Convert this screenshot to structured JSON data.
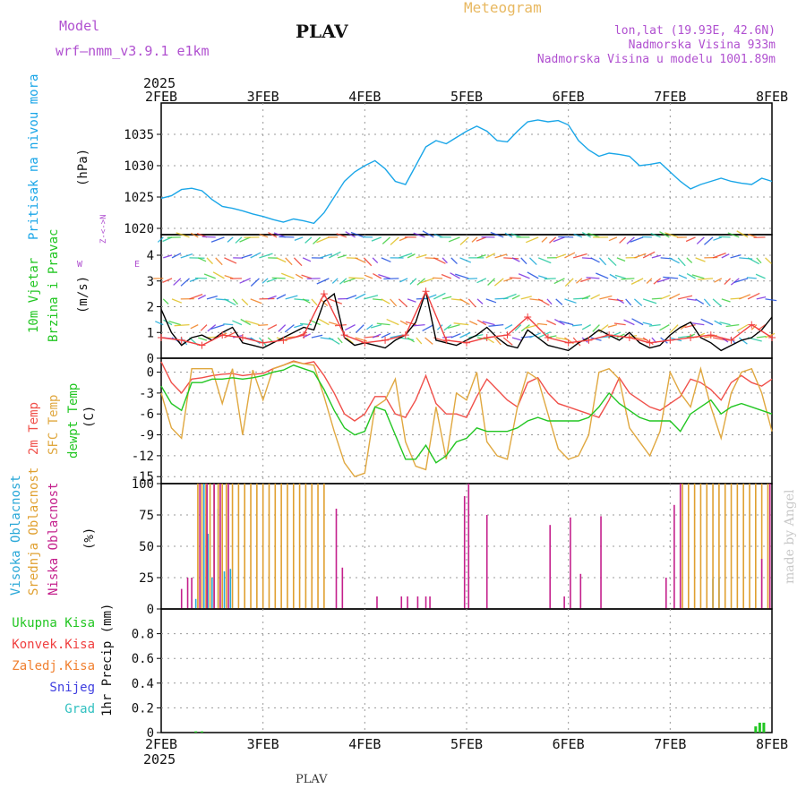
{
  "header": {
    "model_label": "Model",
    "model_name": "wrf—nmm_v3.9.1  e1km",
    "station": "PLAV",
    "meteogram": "Meteogram",
    "lonlat": "lon,lat (19.93E, 42.6N)",
    "elevation": "Nadmorska Visina 933m",
    "model_elevation": "Nadmorska Visina u modelu 1001.89m",
    "footer_station": "PLAV",
    "credit": "made by Angel"
  },
  "colors": {
    "pressure": "#1aa6e8",
    "temp2m": "#f0504a",
    "sfc_temp": "#e0a840",
    "dewpt": "#22c622",
    "high_cloud": "#2aa8d8",
    "mid_cloud": "#e0a030",
    "low_cloud": "#c4208c",
    "wind_speed": "#000000",
    "gust": "#f04040",
    "title_purple": "#b050d0",
    "meteogram_orange": "#e8b860"
  },
  "time_axis": {
    "year": "2025",
    "ticks": [
      "2FEB",
      "3FEB",
      "4FEB",
      "5FEB",
      "6FEB",
      "7FEB",
      "8FEB"
    ],
    "range_days": [
      0,
      6
    ]
  },
  "chart_data": [
    {
      "type": "line",
      "panel": "pressure",
      "ylabel": "Pritisak na nivou mora",
      "unit": "(hPa)",
      "ylim": [
        1019,
        1040
      ],
      "yticks": [
        1020,
        1025,
        1030,
        1035
      ],
      "grid": true,
      "series": [
        {
          "color": "#1aa6e8",
          "x": [
            0,
            0.1,
            0.2,
            0.3,
            0.4,
            0.5,
            0.6,
            0.7,
            0.8,
            0.9,
            1.0,
            1.1,
            1.2,
            1.3,
            1.4,
            1.5,
            1.6,
            1.7,
            1.8,
            1.9,
            2.0,
            2.1,
            2.2,
            2.3,
            2.4,
            2.5,
            2.6,
            2.7,
            2.8,
            2.9,
            3.0,
            3.1,
            3.2,
            3.3,
            3.4,
            3.5,
            3.6,
            3.7,
            3.8,
            3.9,
            4.0,
            4.1,
            4.2,
            4.3,
            4.4,
            4.5,
            4.6,
            4.7,
            4.8,
            4.9,
            5.0,
            5.1,
            5.2,
            5.3,
            5.4,
            5.5,
            5.6,
            5.7,
            5.8,
            5.9,
            6.0
          ],
          "y": [
            1024.8,
            1025.2,
            1026.2,
            1026.4,
            1026.0,
            1024.6,
            1023.5,
            1023.2,
            1022.8,
            1022.3,
            1021.9,
            1021.4,
            1021.0,
            1021.5,
            1021.2,
            1020.8,
            1022.5,
            1025.0,
            1027.5,
            1029.0,
            1030.0,
            1030.8,
            1029.5,
            1027.5,
            1027.0,
            1030.0,
            1033.0,
            1034.0,
            1033.5,
            1034.5,
            1035.5,
            1036.3,
            1035.5,
            1034.0,
            1033.8,
            1035.5,
            1037.0,
            1037.3,
            1037.0,
            1037.2,
            1036.5,
            1034.0,
            1032.5,
            1031.5,
            1032.0,
            1031.8,
            1031.5,
            1030.0,
            1030.2,
            1030.5,
            1029.0,
            1027.5,
            1026.3,
            1027.0,
            1027.5,
            1028.0,
            1027.5,
            1027.2,
            1027.0,
            1028.0,
            1027.5
          ]
        }
      ]
    },
    {
      "type": "line",
      "panel": "wind",
      "ylabel": "10m Vjetar Brzina i Pravac",
      "unit": "(m/s)",
      "ylim": [
        0,
        4.8
      ],
      "yticks": [
        0,
        1,
        2,
        3,
        4
      ],
      "compass": "N  W <-|-> E  S",
      "grid": true,
      "series": [
        {
          "name": "speed",
          "color": "#000000",
          "x": [
            0,
            0.1,
            0.2,
            0.3,
            0.4,
            0.5,
            0.6,
            0.7,
            0.8,
            0.9,
            1.0,
            1.1,
            1.2,
            1.3,
            1.4,
            1.5,
            1.6,
            1.7,
            1.8,
            1.9,
            2.0,
            2.1,
            2.2,
            2.3,
            2.4,
            2.5,
            2.6,
            2.7,
            2.8,
            2.9,
            3.0,
            3.1,
            3.2,
            3.3,
            3.4,
            3.5,
            3.6,
            3.7,
            3.8,
            3.9,
            4.0,
            4.1,
            4.2,
            4.3,
            4.4,
            4.5,
            4.6,
            4.7,
            4.8,
            4.9,
            5.0,
            5.1,
            5.2,
            5.3,
            5.4,
            5.5,
            5.6,
            5.7,
            5.8,
            5.9,
            6.0
          ],
          "y": [
            1.9,
            1.0,
            0.5,
            0.8,
            0.9,
            0.7,
            1.0,
            1.2,
            0.6,
            0.5,
            0.4,
            0.6,
            0.8,
            1.0,
            1.2,
            1.1,
            2.2,
            2.5,
            0.8,
            0.5,
            0.6,
            0.5,
            0.4,
            0.7,
            0.9,
            1.4,
            2.6,
            0.7,
            0.6,
            0.5,
            0.7,
            0.9,
            1.2,
            0.8,
            0.5,
            0.4,
            1.1,
            0.8,
            0.5,
            0.4,
            0.3,
            0.6,
            0.8,
            1.1,
            0.9,
            0.7,
            1.0,
            0.6,
            0.4,
            0.5,
            0.9,
            1.2,
            1.4,
            0.8,
            0.6,
            0.3,
            0.5,
            0.7,
            0.8,
            1.1,
            1.6
          ]
        },
        {
          "name": "gust",
          "color": "#f04040",
          "x": [
            0,
            0.2,
            0.4,
            0.6,
            0.8,
            1.0,
            1.2,
            1.4,
            1.6,
            1.8,
            2.0,
            2.2,
            2.4,
            2.6,
            2.8,
            3.0,
            3.2,
            3.4,
            3.6,
            3.8,
            4.0,
            4.2,
            4.4,
            4.6,
            4.8,
            5.0,
            5.2,
            5.4,
            5.6,
            5.8,
            6.0
          ],
          "y": [
            0.8,
            0.7,
            0.5,
            0.9,
            0.8,
            0.6,
            0.7,
            0.9,
            2.5,
            0.9,
            0.6,
            0.7,
            0.9,
            2.6,
            0.7,
            0.6,
            0.8,
            0.9,
            1.6,
            0.8,
            0.6,
            0.7,
            0.9,
            0.8,
            0.6,
            0.7,
            0.8,
            0.9,
            0.7,
            1.3,
            0.8
          ]
        }
      ]
    },
    {
      "type": "line",
      "panel": "temperature",
      "ylabel": "2m Temp / SFC Temp / dewpt Temp",
      "unit": "(C)",
      "ylim": [
        -16,
        2
      ],
      "yticks": [
        0,
        -3,
        -6,
        -9,
        -12,
        -15
      ],
      "grid": true,
      "series": [
        {
          "name": "2m Temp",
          "color": "#f0504a",
          "x": [
            0,
            0.1,
            0.2,
            0.3,
            0.4,
            0.5,
            0.6,
            0.7,
            0.8,
            0.9,
            1.0,
            1.1,
            1.2,
            1.3,
            1.4,
            1.5,
            1.6,
            1.7,
            1.8,
            1.9,
            2.0,
            2.1,
            2.2,
            2.3,
            2.4,
            2.5,
            2.6,
            2.7,
            2.8,
            2.9,
            3.0,
            3.1,
            3.2,
            3.3,
            3.4,
            3.5,
            3.6,
            3.7,
            3.8,
            3.9,
            4.0,
            4.1,
            4.2,
            4.3,
            4.4,
            4.5,
            4.6,
            4.7,
            4.8,
            4.9,
            5.0,
            5.1,
            5.2,
            5.3,
            5.4,
            5.5,
            5.6,
            5.7,
            5.8,
            5.9,
            6.0
          ],
          "y": [
            1.5,
            -1.5,
            -3.0,
            -1.0,
            -0.8,
            -0.5,
            -0.3,
            -0.2,
            -0.5,
            -0.3,
            -0.2,
            0.5,
            1.0,
            1.6,
            1.2,
            1.5,
            -0.5,
            -3.0,
            -6.0,
            -7.0,
            -6.0,
            -3.5,
            -3.5,
            -6.0,
            -6.5,
            -4.0,
            -0.5,
            -4.5,
            -6.0,
            -6.0,
            -6.5,
            -3.5,
            -1.0,
            -2.5,
            -4.0,
            -5.0,
            -1.5,
            -0.8,
            -3.0,
            -4.5,
            -5.0,
            -5.5,
            -6.0,
            -6.5,
            -4.0,
            -0.8,
            -3.0,
            -4.0,
            -5.0,
            -5.5,
            -4.5,
            -3.5,
            -1.0,
            -1.5,
            -2.5,
            -4.0,
            -1.5,
            -0.5,
            -1.5,
            -2.0,
            -1.0
          ]
        },
        {
          "name": "SFC Temp",
          "color": "#e0a840",
          "x": [
            0,
            0.1,
            0.2,
            0.3,
            0.4,
            0.5,
            0.6,
            0.7,
            0.8,
            0.9,
            1.0,
            1.1,
            1.2,
            1.3,
            1.4,
            1.5,
            1.6,
            1.7,
            1.8,
            1.9,
            2.0,
            2.1,
            2.2,
            2.3,
            2.4,
            2.5,
            2.6,
            2.7,
            2.8,
            2.9,
            3.0,
            3.1,
            3.2,
            3.3,
            3.4,
            3.5,
            3.6,
            3.7,
            3.8,
            3.9,
            4.0,
            4.1,
            4.2,
            4.3,
            4.4,
            4.5,
            4.6,
            4.7,
            4.8,
            4.9,
            5.0,
            5.1,
            5.2,
            5.3,
            5.4,
            5.5,
            5.6,
            5.7,
            5.8,
            5.9,
            6.0
          ],
          "y": [
            -3.0,
            -8.0,
            -9.5,
            0.5,
            0.5,
            0.5,
            -4.5,
            0.5,
            -9.0,
            0.3,
            -4.0,
            0.5,
            1.0,
            1.5,
            1.2,
            1.0,
            -3.5,
            -8.5,
            -13.0,
            -15.0,
            -14.5,
            -5.0,
            -4.0,
            -1.0,
            -10.0,
            -13.5,
            -14.0,
            -5.0,
            -12.5,
            -3.0,
            -4.0,
            0.0,
            -10.0,
            -12.0,
            -12.5,
            -5.0,
            0.0,
            -1.0,
            -6.0,
            -11.0,
            -12.5,
            -12.0,
            -9.0,
            0.0,
            0.5,
            -1.0,
            -8.0,
            -10.0,
            -12.0,
            -8.5,
            0.0,
            -3.0,
            -5.0,
            0.5,
            -5.0,
            -9.5,
            -3.0,
            0.0,
            0.5,
            -3.0,
            -8.5
          ]
        },
        {
          "name": "dewpt Temp",
          "color": "#22c622",
          "x": [
            0,
            0.1,
            0.2,
            0.3,
            0.4,
            0.5,
            0.6,
            0.7,
            0.8,
            0.9,
            1.0,
            1.1,
            1.2,
            1.3,
            1.4,
            1.5,
            1.6,
            1.7,
            1.8,
            1.9,
            2.0,
            2.1,
            2.2,
            2.3,
            2.4,
            2.5,
            2.6,
            2.7,
            2.8,
            2.9,
            3.0,
            3.1,
            3.2,
            3.3,
            3.4,
            3.5,
            3.6,
            3.7,
            3.8,
            3.9,
            4.0,
            4.1,
            4.2,
            4.3,
            4.4,
            4.5,
            4.6,
            4.7,
            4.8,
            4.9,
            5.0,
            5.1,
            5.2,
            5.3,
            5.4,
            5.5,
            5.6,
            5.7,
            5.8,
            5.9,
            6.0
          ],
          "y": [
            -2.0,
            -4.5,
            -5.5,
            -1.5,
            -1.5,
            -1.0,
            -1.0,
            -0.8,
            -1.0,
            -0.8,
            -0.5,
            0.0,
            0.3,
            1.0,
            0.5,
            0.0,
            -2.5,
            -5.5,
            -8.0,
            -9.0,
            -8.5,
            -5.0,
            -5.5,
            -9.0,
            -12.5,
            -12.5,
            -10.5,
            -13.0,
            -12.0,
            -10.0,
            -9.5,
            -8.0,
            -8.5,
            -8.5,
            -8.5,
            -8.0,
            -7.0,
            -6.5,
            -7.0,
            -7.0,
            -7.0,
            -7.0,
            -6.5,
            -5.0,
            -3.0,
            -4.5,
            -5.5,
            -6.5,
            -7.0,
            -7.0,
            -7.0,
            -8.5,
            -6.0,
            -5.0,
            -4.0,
            -6.0,
            -5.0,
            -4.5,
            -5.0,
            -5.5,
            -6.0
          ]
        }
      ]
    },
    {
      "type": "bar",
      "panel": "cloud",
      "ylabel": "Visoka Oblacnost / Srednja Oblacnost / Niska Oblacnost",
      "unit": "(%)",
      "ylim": [
        0,
        100
      ],
      "yticks": [
        0,
        25,
        50,
        75,
        100
      ],
      "grid": true,
      "series": [
        {
          "name": "Visoka Oblacnost",
          "color": "#2aa8d8",
          "x": [
            0.34,
            0.42,
            0.46,
            0.5,
            0.56,
            0.62,
            0.68,
            5.42,
            5.48
          ],
          "values": [
            8,
            100,
            60,
            25,
            80,
            30,
            32,
            24,
            25
          ]
        },
        {
          "name": "Srednja Oblacnost",
          "color": "#e0a030",
          "x": [
            0.36,
            0.4,
            0.44,
            0.48,
            0.52,
            0.56,
            0.6,
            0.64,
            0.7,
            0.76,
            0.82,
            0.88,
            0.94,
            1.0,
            1.06,
            1.12,
            1.18,
            1.24,
            1.3,
            1.36,
            1.42,
            1.48,
            1.54,
            1.6,
            5.12,
            5.18,
            5.24,
            5.3,
            5.36,
            5.42,
            5.48,
            5.54,
            5.6,
            5.66,
            5.72,
            5.78,
            5.84,
            5.9,
            5.96
          ],
          "values": [
            100,
            100,
            100,
            100,
            100,
            100,
            100,
            100,
            100,
            100,
            100,
            100,
            100,
            100,
            100,
            100,
            100,
            100,
            100,
            100,
            100,
            100,
            100,
            100,
            100,
            100,
            100,
            100,
            100,
            100,
            100,
            100,
            100,
            100,
            100,
            100,
            100,
            100,
            100
          ]
        },
        {
          "name": "Niska Oblacnost",
          "color": "#c4208c",
          "x": [
            0.2,
            0.26,
            0.3,
            0.38,
            0.45,
            0.52,
            0.58,
            0.66,
            1.72,
            1.78,
            2.12,
            2.36,
            2.42,
            2.52,
            2.6,
            2.64,
            2.98,
            3.02,
            3.2,
            3.82,
            3.96,
            4.02,
            4.12,
            4.32,
            4.96,
            5.04,
            5.1,
            5.9,
            5.98
          ],
          "values": [
            16,
            25,
            25,
            100,
            100,
            100,
            100,
            100,
            80,
            33,
            10,
            10,
            10,
            10,
            10,
            10,
            90,
            100,
            75,
            67,
            10,
            73,
            28,
            74,
            25,
            83,
            100,
            40,
            100
          ]
        }
      ]
    },
    {
      "type": "bar",
      "panel": "precip",
      "ylabel": "1hr Precip (mm)",
      "ylim": [
        0,
        1.0
      ],
      "yticks": [
        0,
        0.2,
        0.4,
        0.6,
        0.8
      ],
      "grid": true,
      "legend": [
        {
          "label": "Ukupna Kisa",
          "color": "#22c622"
        },
        {
          "label": "Konvek.Kisa",
          "color": "#f04040"
        },
        {
          "label": "Zaledj.Kisa",
          "color": "#f08030"
        },
        {
          "label": "Snijeg",
          "color": "#4040e0"
        },
        {
          "label": "Grad",
          "color": "#30c0c0"
        }
      ],
      "series": [
        {
          "name": "Ukupna Kisa",
          "color": "#22c622",
          "x": [
            0.34,
            0.4,
            5.84,
            5.88,
            5.92
          ],
          "values": [
            0.01,
            0.01,
            0.05,
            0.08,
            0.08
          ]
        }
      ]
    }
  ]
}
